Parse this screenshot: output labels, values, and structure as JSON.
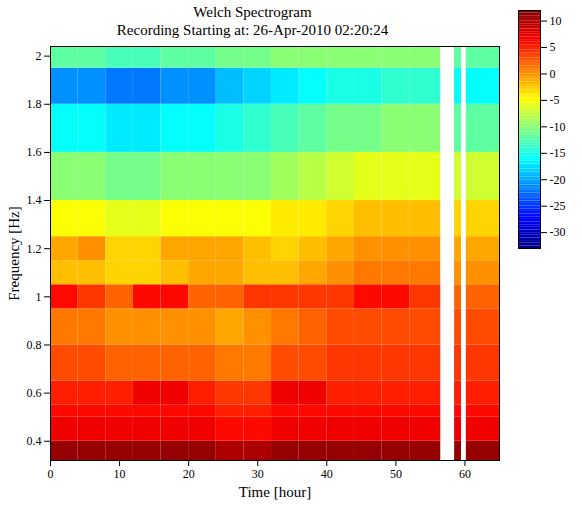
{
  "chart_data": {
    "type": "heatmap",
    "title": "Welch Spectrogram",
    "subtitle": "Recording Starting at: 26-Apr-2010 02:20:24",
    "x_label": "Time [hour]",
    "y_label": "Frequency [Hz]",
    "xlim": [
      0,
      65
    ],
    "xticks": [
      0,
      10,
      20,
      30,
      40,
      50,
      60
    ],
    "ylim": [
      0.32,
      2.04
    ],
    "yticks": [
      0.4,
      0.6,
      0.8,
      1,
      1.2,
      1.4,
      1.6,
      1.8,
      2
    ],
    "x_edges": [
      0,
      4,
      8,
      12,
      16,
      20,
      24,
      28,
      32,
      36,
      40,
      44,
      48,
      52,
      56.5,
      58.5,
      59.5,
      60.2,
      65
    ],
    "y_edges": [
      0.32,
      0.4,
      0.5,
      0.55,
      0.65,
      0.8,
      0.95,
      1.05,
      1.15,
      1.25,
      1.4,
      1.6,
      1.8,
      1.95,
      2.04
    ],
    "cells": [
      [
        11,
        11,
        11,
        11,
        11,
        11,
        10,
        10,
        11,
        11,
        11,
        11,
        11,
        11,
        null,
        11,
        null,
        11
      ],
      [
        7,
        7,
        7,
        7,
        7,
        7,
        6,
        6,
        7,
        7,
        7,
        7,
        7,
        7,
        null,
        7,
        null,
        7
      ],
      [
        6,
        6,
        6,
        6,
        6,
        6,
        5,
        5,
        6,
        6,
        6,
        6,
        6,
        6,
        null,
        6,
        null,
        6
      ],
      [
        5,
        5,
        5,
        7,
        7,
        5,
        4,
        4,
        7,
        7,
        5,
        5,
        5,
        5,
        null,
        5,
        null,
        5
      ],
      [
        3,
        3,
        2,
        2,
        2,
        2,
        1,
        1,
        3,
        3,
        4,
        4,
        4,
        4,
        null,
        4,
        null,
        4
      ],
      [
        1,
        1,
        0,
        0,
        0,
        0,
        -1,
        0,
        1,
        2,
        3,
        3,
        3,
        3,
        null,
        3,
        null,
        3
      ],
      [
        6,
        4,
        2,
        6,
        6,
        2,
        2,
        4,
        4,
        4,
        4,
        6,
        6,
        4,
        null,
        2,
        null,
        2
      ],
      [
        -2,
        -2,
        -3,
        -3,
        -2,
        -1,
        -1,
        -2,
        -2,
        -1,
        0,
        1,
        1,
        1,
        null,
        0,
        null,
        0
      ],
      [
        -1,
        0,
        -3,
        -3,
        -1,
        -1,
        -1,
        -2,
        -3,
        -2,
        -1,
        0,
        0,
        0,
        null,
        -1,
        null,
        -1
      ],
      [
        -5,
        -5,
        -6,
        -6,
        -5,
        -5,
        -5,
        -5,
        -4,
        -4,
        -3,
        -2,
        -2,
        -2,
        null,
        -3,
        null,
        -3
      ],
      [
        -10,
        -10,
        -11,
        -11,
        -10,
        -10,
        -10,
        -10,
        -9,
        -8,
        -7,
        -6,
        -6,
        -6,
        null,
        -7,
        null,
        -7
      ],
      [
        -16,
        -16,
        -17,
        -17,
        -16,
        -16,
        -15,
        -14,
        -13,
        -12,
        -11,
        -11,
        -10,
        -10,
        null,
        -12,
        null,
        -12
      ],
      [
        -21,
        -21,
        -22,
        -22,
        -21,
        -21,
        -19,
        -18,
        -17,
        -16,
        -15,
        -15,
        -14,
        -14,
        null,
        -16,
        null,
        -16
      ],
      [
        -12,
        -12,
        -13,
        -13,
        -12,
        -12,
        -11,
        -11,
        -10,
        -10,
        -10,
        -10,
        -10,
        -10,
        null,
        -12,
        null,
        -12
      ]
    ],
    "colorbar": {
      "lim": [
        -33,
        12
      ],
      "ticks": [
        -30,
        -25,
        -20,
        -15,
        -10,
        -5,
        0,
        5,
        10
      ]
    }
  }
}
